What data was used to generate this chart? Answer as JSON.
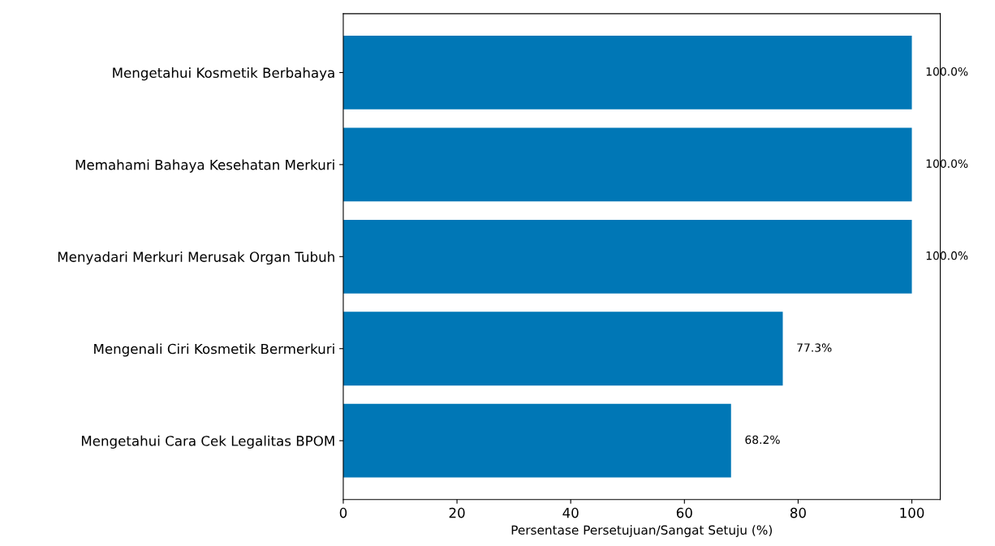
{
  "chart_data": {
    "type": "bar",
    "orientation": "horizontal",
    "xlabel": "Persentase Persetujuan/Sangat Setuju (%)",
    "categories": [
      "Mengetahui Kosmetik Berbahaya",
      "Memahami Bahaya Kesehatan Merkuri",
      "Menyadari Merkuri Merusak Organ Tubuh",
      "Mengenali Ciri Kosmetik Bermerkuri",
      "Mengetahui Cara Cek Legalitas BPOM"
    ],
    "values": [
      100.0,
      100.0,
      100.0,
      77.3,
      68.2
    ],
    "value_labels": [
      "100.0%",
      "100.0%",
      "100.0%",
      "77.3%",
      "68.2%"
    ],
    "color": "#0077b6",
    "xlim": [
      0,
      105
    ],
    "xticks": [
      0,
      20,
      40,
      60,
      80,
      100
    ],
    "grid": false
  }
}
